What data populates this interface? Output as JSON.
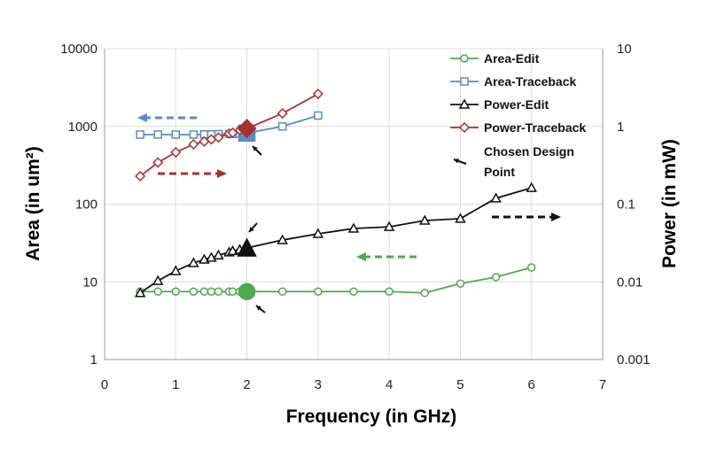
{
  "chart_data": {
    "type": "line",
    "xlabel": "Frequency (in GHz)",
    "ylabel": "Area (in um²)",
    "y2label": "Power (in mW)",
    "xlim": [
      0,
      7
    ],
    "ylim": [
      1,
      10000
    ],
    "y2lim": [
      0.001,
      10
    ],
    "yscale": "log",
    "y2scale": "log",
    "grid": true,
    "x_ticks": [
      "0",
      "1",
      "2",
      "3",
      "4",
      "5",
      "6",
      "7"
    ],
    "y_ticks": [
      "1",
      "10",
      "100",
      "1000",
      "10000"
    ],
    "y2_ticks": [
      "0.001",
      "0.01",
      "0.1",
      "1",
      "10"
    ],
    "legend_position": "top-right",
    "series": [
      {
        "name": "Area-Edit",
        "axis": "left",
        "color": "#4ea84e",
        "marker": "circle",
        "x": [
          0.5,
          0.75,
          1,
          1.25,
          1.4,
          1.5,
          1.6,
          1.75,
          1.8,
          1.9,
          2,
          2.5,
          3,
          3.5,
          4,
          4.5,
          5,
          5.5,
          6
        ],
        "y": [
          7.5,
          7.5,
          7.5,
          7.5,
          7.5,
          7.5,
          7.5,
          7.5,
          7.5,
          7.5,
          7.5,
          7.5,
          7.5,
          7.5,
          7.5,
          7.2,
          9.5,
          11.5,
          15.3
        ]
      },
      {
        "name": "Area-Traceback",
        "axis": "left",
        "color": "#5b8ac4",
        "marker": "square",
        "x": [
          0.5,
          0.75,
          1,
          1.25,
          1.4,
          1.5,
          1.6,
          1.75,
          1.8,
          1.9,
          2,
          2.5,
          3
        ],
        "y": [
          785,
          785,
          785,
          785,
          790,
          790,
          795,
          800,
          800,
          810,
          820,
          1000,
          1380
        ]
      },
      {
        "name": "Power-Edit",
        "axis": "right",
        "color": "#111111",
        "marker": "triangle",
        "x": [
          0.5,
          0.75,
          1,
          1.25,
          1.4,
          1.5,
          1.6,
          1.75,
          1.8,
          1.9,
          2,
          2.5,
          3,
          3.5,
          4,
          4.5,
          5,
          5.5,
          6
        ],
        "y": [
          0.0072,
          0.0103,
          0.0138,
          0.0175,
          0.0194,
          0.0205,
          0.022,
          0.024,
          0.025,
          0.026,
          0.0273,
          0.0345,
          0.0415,
          0.0486,
          0.051,
          0.0615,
          0.065,
          0.119,
          0.162
        ]
      },
      {
        "name": "Power-Traceback",
        "axis": "right",
        "color": "#a83232",
        "marker": "diamond",
        "x": [
          0.5,
          0.75,
          1,
          1.25,
          1.4,
          1.5,
          1.6,
          1.75,
          1.8,
          1.9,
          2,
          2.5,
          3
        ],
        "y": [
          0.229,
          0.343,
          0.464,
          0.588,
          0.64,
          0.68,
          0.72,
          0.81,
          0.83,
          0.9,
          0.94,
          1.47,
          2.62
        ]
      }
    ],
    "chosen_design_point": {
      "x": 2,
      "label": "Chosen Design Point"
    }
  }
}
